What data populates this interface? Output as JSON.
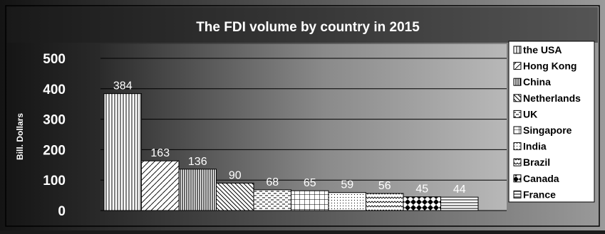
{
  "chart_data": {
    "type": "bar",
    "title": "The FDI volume by country in 2015",
    "ylabel": "Bill. Dollars",
    "xlabel": "",
    "ylim": [
      0,
      500
    ],
    "yticks": [
      0,
      100,
      200,
      300,
      400,
      500
    ],
    "grid": true,
    "legend_position": "right",
    "categories": [
      "the USA",
      "Hong Kong",
      "China",
      "Netherlands",
      "UK",
      "Singapore",
      "India",
      "Brazil",
      "Canada",
      "France"
    ],
    "values": [
      384,
      163,
      136,
      90,
      68,
      65,
      59,
      56,
      45,
      44
    ],
    "patterns": [
      "vertical",
      "diagonal-dash",
      "vertical-dense",
      "diagonal-wide",
      "dashes",
      "grid",
      "dots",
      "waves",
      "checker",
      "horizontal"
    ]
  }
}
